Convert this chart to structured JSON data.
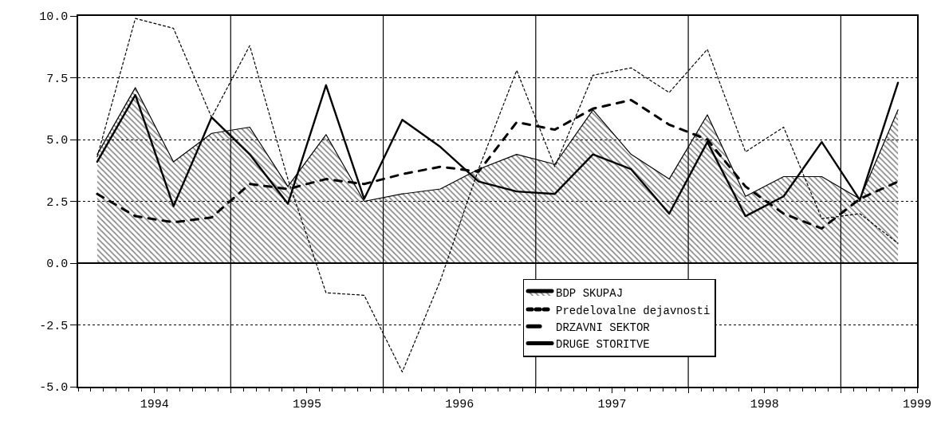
{
  "chart_data": {
    "type": "line",
    "x": [
      1994.125,
      1994.375,
      1994.625,
      1994.875,
      1995.125,
      1995.375,
      1995.625,
      1995.875,
      1996.125,
      1996.375,
      1996.625,
      1996.875,
      1997.125,
      1997.375,
      1997.625,
      1997.875,
      1998.125,
      1998.375,
      1998.625,
      1998.875,
      1999.125,
      1999.375
    ],
    "series": [
      {
        "name": "BDP SKUPAJ",
        "type": "area",
        "color": "#000000",
        "line_style": "solid",
        "values": [
          4.4,
          7.1,
          4.1,
          5.25,
          5.5,
          3.1,
          5.2,
          2.5,
          2.8,
          3.0,
          3.8,
          4.4,
          4.0,
          6.2,
          4.4,
          3.4,
          6.0,
          2.7,
          3.5,
          3.5,
          2.6,
          6.2
        ]
      },
      {
        "name": "Predelovalne dejavnosti",
        "type": "line",
        "color": "#000000",
        "line_style": "dotted",
        "values": [
          4.3,
          9.9,
          9.5,
          5.9,
          8.8,
          3.4,
          -1.2,
          -1.3,
          -4.4,
          -0.7,
          3.8,
          7.8,
          3.9,
          7.6,
          7.9,
          6.9,
          8.65,
          4.5,
          5.5,
          1.8,
          2.0,
          0.8
        ]
      },
      {
        "name": "DRZAVNI SEKTOR",
        "type": "line",
        "color": "#000000",
        "line_style": "dashed",
        "values": [
          2.8,
          1.9,
          1.65,
          1.85,
          3.2,
          3.0,
          3.4,
          3.2,
          3.6,
          3.9,
          3.7,
          5.7,
          5.4,
          6.25,
          6.6,
          5.6,
          5.0,
          3.1,
          2.0,
          1.4,
          2.6,
          3.3
        ]
      },
      {
        "name": "DRUGE STORITVE",
        "type": "line",
        "color": "#000000",
        "line_style": "solid",
        "values": [
          4.1,
          6.8,
          2.3,
          5.9,
          4.4,
          2.4,
          7.2,
          2.6,
          5.8,
          4.7,
          3.3,
          2.9,
          2.8,
          4.4,
          3.8,
          2.0,
          4.9,
          1.9,
          2.7,
          4.9,
          2.55,
          7.3
        ]
      }
    ],
    "xlim": [
      1994,
      1999.5
    ],
    "xticks": [
      {
        "value": 1994.5,
        "label": "1994"
      },
      {
        "value": 1995,
        "label": null
      },
      {
        "value": 1995.5,
        "label": "1995"
      },
      {
        "value": 1996,
        "label": null
      },
      {
        "value": 1996.5,
        "label": "1996"
      },
      {
        "value": 1997,
        "label": null
      },
      {
        "value": 1997.5,
        "label": "1997"
      },
      {
        "value": 1998,
        "label": null
      },
      {
        "value": 1998.5,
        "label": "1998"
      },
      {
        "value": 1999,
        "label": null
      },
      {
        "value": 1999.5,
        "label": "1999"
      }
    ],
    "ylim": [
      -5,
      10
    ],
    "yticks": [
      {
        "value": -5,
        "label": "-5.0"
      },
      {
        "value": -2.5,
        "label": "-2.5"
      },
      {
        "value": 0,
        "label": "0.0"
      },
      {
        "value": 2.5,
        "label": "2.5"
      },
      {
        "value": 5,
        "label": "5.0"
      },
      {
        "value": 7.5,
        "label": "7.5"
      },
      {
        "value": 10,
        "label": "10.0"
      }
    ],
    "grid": true,
    "legend": "bottom right"
  }
}
